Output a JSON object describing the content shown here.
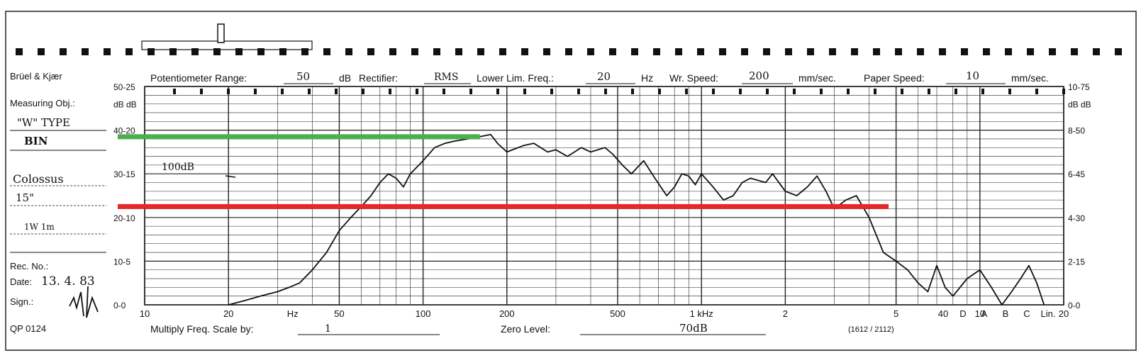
{
  "header": {
    "brand": "Brüel & Kjær",
    "pot_range_label": "Potentiometer Range:",
    "pot_range_value": "50",
    "pot_range_unit": "dB",
    "rectifier_label": "Rectifier:",
    "rectifier_value": "RMS",
    "lower_lim_label": "Lower Lim. Freq.:",
    "lower_lim_value": "20",
    "lower_lim_unit": "Hz",
    "wr_speed_label": "Wr. Speed:",
    "wr_speed_value": "200",
    "wr_speed_unit": "mm/sec.",
    "paper_speed_label": "Paper Speed:",
    "paper_speed_value": "10",
    "paper_speed_unit": "mm/sec."
  },
  "left_panel": {
    "measuring_obj_label": "Measuring Obj.:",
    "type_line": "\"W\" TYPE",
    "bin_line": "BIN",
    "model_line": "Colossus",
    "size_line": "15\"",
    "note_line": "1W 1m",
    "rec_no_label": "Rec. No.:",
    "date_label": "Date:",
    "date_value": "13. 4. 83",
    "sign_label": "Sign.:",
    "form_no": "QP 0124"
  },
  "footer": {
    "multiply_label": "Multiply Freq. Scale by:",
    "multiply_value": "1",
    "zero_level_label": "Zero Level:",
    "zero_level_value": "70dB",
    "code": "(1612 / 2112)"
  },
  "annotations": {
    "tag_1w": "100dB"
  },
  "chart_data": {
    "type": "line",
    "title": "",
    "xlabel": "Hz",
    "ylabel": "dB",
    "x_scale": "log",
    "xlim": [
      10,
      20000
    ],
    "ylim": [
      0,
      50
    ],
    "grid": true,
    "x_tick_labels": [
      "10",
      "20",
      "Hz",
      "50",
      "100",
      "200",
      "500",
      "1 kHz",
      "2",
      "5",
      "10",
      "20",
      "40"
    ],
    "weighting_labels": [
      "D",
      "A",
      "B",
      "C",
      "Lin."
    ],
    "left_y_scale_labels": [
      "50-25",
      "dB dB",
      "40-20",
      "30-15",
      "20-10",
      "10-5",
      "0-0"
    ],
    "right_y_scale_labels": [
      "10-75",
      "dB dB",
      "8-50",
      "6-45",
      "4-30",
      "2-15",
      "0-0"
    ],
    "series": [
      {
        "x": [
          20,
          23,
          26,
          30,
          33,
          36,
          40,
          45,
          50,
          55,
          60,
          65,
          70,
          75,
          80,
          85,
          90,
          100,
          110,
          120,
          130,
          145,
          160,
          175,
          185,
          200,
          230,
          250,
          280,
          300,
          330,
          370,
          400,
          450,
          480,
          520,
          560,
          620,
          680,
          750,
          800,
          850,
          900,
          950,
          1000,
          1100,
          1200,
          1300,
          1400,
          1500,
          1700,
          1800,
          2000,
          2200,
          2400,
          2600,
          2800,
          3000,
          3300,
          3600,
          4000,
          4500,
          5000,
          5500,
          6000,
          6500,
          7000,
          7500,
          8000,
          9000,
          10000,
          11000,
          12000,
          13000,
          14000,
          15000,
          16000,
          17000
        ],
        "values": [
          0,
          1,
          2,
          3,
          4,
          5,
          8,
          12,
          17,
          20,
          22.5,
          25,
          28,
          30,
          29,
          27,
          30,
          33,
          36,
          37,
          37.5,
          38,
          38.5,
          39,
          37,
          35,
          36.5,
          37,
          35,
          35.5,
          34,
          36,
          35,
          36,
          34.5,
          32,
          30,
          33,
          29,
          25,
          27,
          30,
          29.5,
          27.5,
          30,
          27,
          24,
          25,
          28,
          29,
          28,
          30,
          26,
          25,
          27,
          29.5,
          26,
          22,
          24,
          25,
          20,
          12,
          10,
          8,
          5,
          3,
          9,
          4,
          2,
          6,
          8,
          4,
          0,
          3,
          6,
          9,
          5,
          0
        ]
      }
    ],
    "reference_lines": [
      {
        "color": "#4cae4c",
        "y": 38.5,
        "x_start": 8,
        "x_end": 160
      },
      {
        "color": "#e32a2a",
        "y": 22.5,
        "x_start": 8,
        "x_end": 4700
      }
    ],
    "colors": {
      "trace": "#111111",
      "grid": "#222222",
      "green_line": "#4cae4c",
      "red_line": "#e32a2a"
    }
  }
}
